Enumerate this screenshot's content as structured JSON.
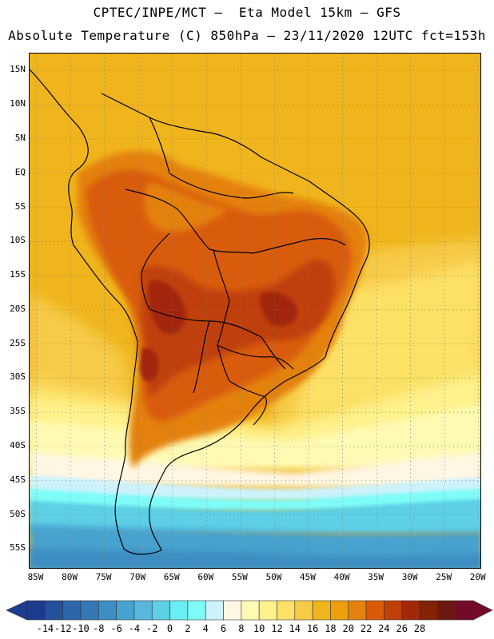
{
  "header": {
    "line1": "CPTEC/INPE/MCT –  Eta Model 15km – GFS",
    "line2": "Absolute Temperature (C) 850hPa – 23/11/2020 12UTC fct=153h"
  },
  "map": {
    "lat_labels": [
      "15N",
      "10N",
      "5N",
      "EQ",
      "5S",
      "10S",
      "15S",
      "20S",
      "25S",
      "30S",
      "35S",
      "40S",
      "45S",
      "50S",
      "55S"
    ],
    "lon_labels": [
      "85W",
      "80W",
      "75W",
      "70W",
      "65W",
      "60W",
      "55W",
      "50W",
      "45W",
      "40W",
      "35W",
      "30W",
      "25W",
      "20W"
    ],
    "lat_range": [
      17.5,
      -58
    ],
    "lon_range": [
      -86,
      -19.5
    ],
    "gridlines": "dotted"
  },
  "colorbar": {
    "labels": [
      "-14",
      "-12",
      "-10",
      "-8",
      "-6",
      "-4",
      "-2",
      "0",
      "2",
      "4",
      "6",
      "8",
      "10",
      "12",
      "14",
      "16",
      "18",
      "20",
      "22",
      "24",
      "26",
      "28"
    ],
    "colors": [
      "#1d3b8f",
      "#24519b",
      "#2d66a9",
      "#3479b6",
      "#3d8ec3",
      "#47a2cf",
      "#57b8dc",
      "#5dd0e6",
      "#6beef2",
      "#7efcf8",
      "#cdf2fb",
      "#fff7e3",
      "#fffab3",
      "#fff28d",
      "#fde066",
      "#f6cb46",
      "#f0b41c",
      "#eba00c",
      "#e4810f",
      "#d95b0a",
      "#bf4008",
      "#a12808",
      "#842206",
      "#6d1810",
      "#730a2a"
    ]
  }
}
